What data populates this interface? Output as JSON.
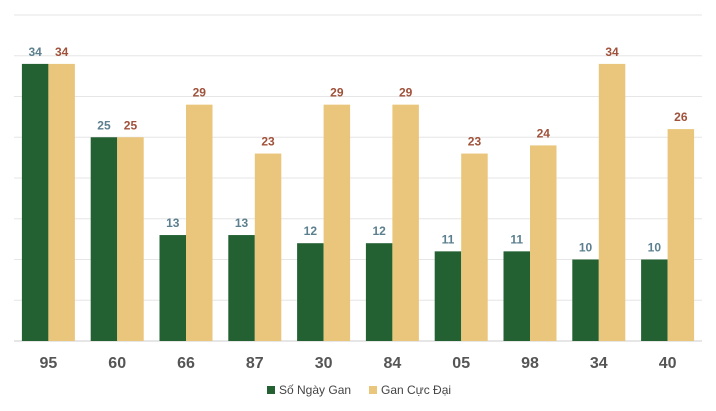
{
  "chart_data": {
    "type": "bar",
    "categories": [
      "95",
      "60",
      "66",
      "87",
      "30",
      "84",
      "05",
      "98",
      "34",
      "40"
    ],
    "series": [
      {
        "name": "Số Ngày Gan",
        "values": [
          34,
          25,
          13,
          13,
          12,
          12,
          11,
          11,
          10,
          10
        ],
        "color": "#236133",
        "label_color": "#5b7f8f"
      },
      {
        "name": "Gan Cực Đại",
        "values": [
          34,
          25,
          29,
          23,
          29,
          29,
          23,
          24,
          34,
          26
        ],
        "color": "#e9c67b",
        "label_color": "#a0513a"
      }
    ],
    "ylim": [
      0,
      40
    ],
    "grid": true,
    "legend_position": "bottom-center"
  }
}
